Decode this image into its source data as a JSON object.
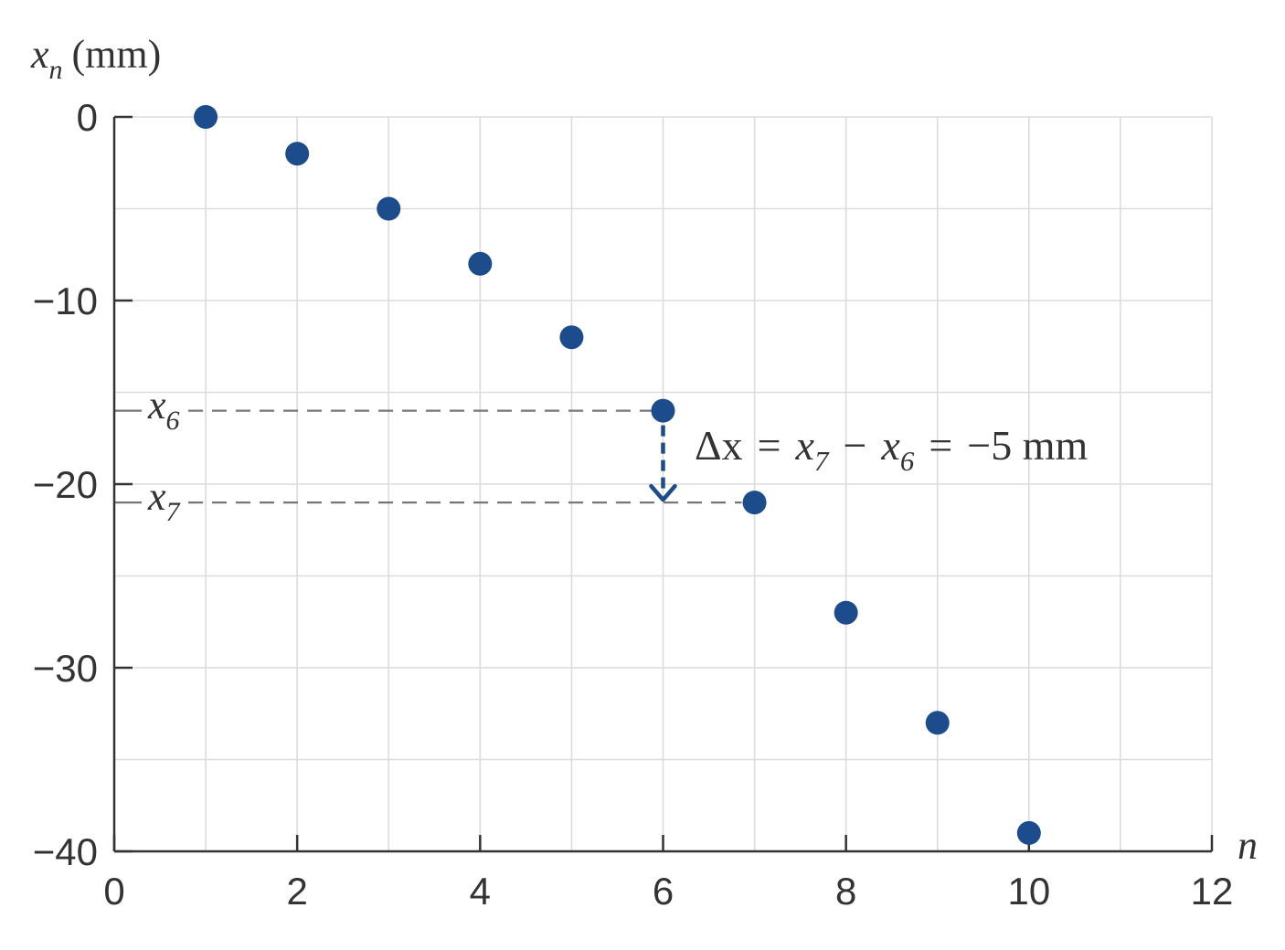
{
  "chart_data": {
    "type": "scatter",
    "ylabel_var": "x",
    "ylabel_sub": "n",
    "ylabel_unit": "(mm)",
    "xlabel": "n",
    "xlim": [
      0,
      12
    ],
    "ylim": [
      -40,
      0
    ],
    "x_ticks": [
      0,
      2,
      4,
      6,
      8,
      10,
      12
    ],
    "x_tick_labels": [
      "0",
      "2",
      "4",
      "6",
      "8",
      "10",
      "12"
    ],
    "y_ticks": [
      0,
      -10,
      -20,
      -30,
      -40
    ],
    "y_tick_labels": [
      "0",
      "−10",
      "−20",
      "−30",
      "−40"
    ],
    "grid": true,
    "marker_color": "#1c4c8c",
    "points": [
      {
        "x": 1,
        "y": 0
      },
      {
        "x": 2,
        "y": -2
      },
      {
        "x": 3,
        "y": -5
      },
      {
        "x": 4,
        "y": -8
      },
      {
        "x": 5,
        "y": -12
      },
      {
        "x": 6,
        "y": -16
      },
      {
        "x": 7,
        "y": -21
      },
      {
        "x": 8,
        "y": -27
      },
      {
        "x": 9,
        "y": -33
      },
      {
        "x": 10,
        "y": -39
      }
    ],
    "annotations": {
      "x6_label": "x",
      "x6_sub": "6",
      "x7_label": "x",
      "x7_sub": "7",
      "x6_value": -16,
      "x7_value": -21,
      "arrow_x": 6,
      "delta_eq": {
        "delta": "Δx",
        "eq1": "=",
        "t1": "x",
        "t1_sub": "7",
        "minus": "−",
        "t2": "x",
        "t2_sub": "6",
        "eq2": "=",
        "value": "−5 mm"
      }
    }
  }
}
